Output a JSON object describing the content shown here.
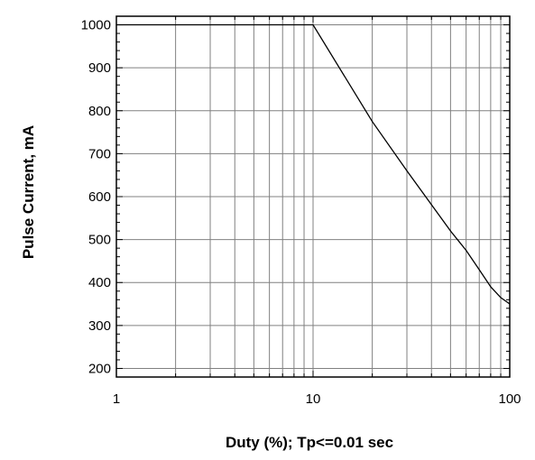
{
  "chart_data": {
    "type": "line",
    "title": "",
    "xlabel": "Duty (%); Tp<=0.01 sec",
    "ylabel": "Pulse Current, mA",
    "xscale": "log",
    "xlim": [
      1,
      100
    ],
    "ylim": [
      180,
      1020
    ],
    "grid": true,
    "legend": "none",
    "x_ticks": [
      1,
      10,
      100
    ],
    "x_tick_labels": [
      "1",
      "10",
      "100"
    ],
    "y_ticks": [
      200,
      300,
      400,
      500,
      600,
      700,
      800,
      900,
      1000
    ],
    "y_tick_labels": [
      "200",
      "300",
      "400",
      "500",
      "600",
      "700",
      "800",
      "900",
      "1000"
    ],
    "series": [
      {
        "color": "#000000",
        "x": [
          1,
          2,
          5,
          10,
          20,
          30,
          50,
          60,
          70,
          80,
          90,
          100
        ],
        "y": [
          1000,
          1000,
          1000,
          1000,
          775,
          660,
          520,
          475,
          430,
          390,
          365,
          350
        ]
      }
    ]
  }
}
